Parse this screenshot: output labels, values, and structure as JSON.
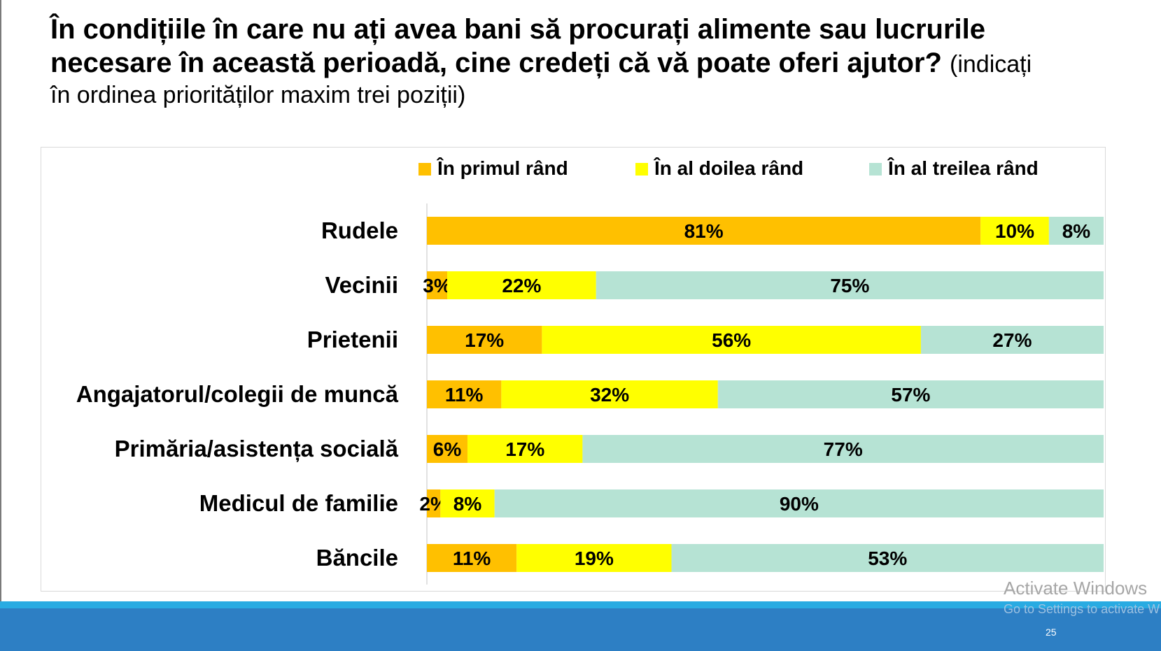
{
  "header": {
    "title": "În condițiile în care nu ați avea bani să procurați alimente sau lucrurile necesare în această perioadă, cine credeți că vă poate oferi ajutor?",
    "note_part1": "(indicați",
    "note_part2": "în ordinea priorităților maxim trei poziții)"
  },
  "chart_data": {
    "type": "bar",
    "orientation": "horizontal",
    "stacked": true,
    "percent_stacked": true,
    "categories": [
      "Rudele",
      "Vecinii",
      "Prietenii",
      "Angajatorul/colegii de muncă",
      "Primăria/asistența socială",
      "Medicul de familie",
      "Băncile"
    ],
    "series": [
      {
        "name": "În primul rând",
        "color": "#ffc000",
        "values": [
          81,
          3,
          17,
          11,
          6,
          2,
          11
        ],
        "labels": [
          "81%",
          "3%",
          "17%",
          "11%",
          "6%",
          "2%",
          "11%"
        ]
      },
      {
        "name": "În al doilea rând",
        "color": "#ffff00",
        "values": [
          10,
          22,
          56,
          32,
          17,
          8,
          19
        ],
        "labels": [
          "10%",
          "22%",
          "56%",
          "32%",
          "17%",
          "8%",
          "19%"
        ]
      },
      {
        "name": "În al treilea rând",
        "color": "#b6e3d4",
        "values": [
          8,
          75,
          27,
          57,
          77,
          90,
          53
        ],
        "labels": [
          "8%",
          "75%",
          "27%",
          "57%",
          "77%",
          "90%",
          "53%"
        ]
      }
    ],
    "legend_position": "top",
    "grid": false
  },
  "watermark": {
    "line1": "Activate Windows",
    "line2": "Go to Settings to activate W"
  },
  "footer": {
    "page_number": "25"
  }
}
